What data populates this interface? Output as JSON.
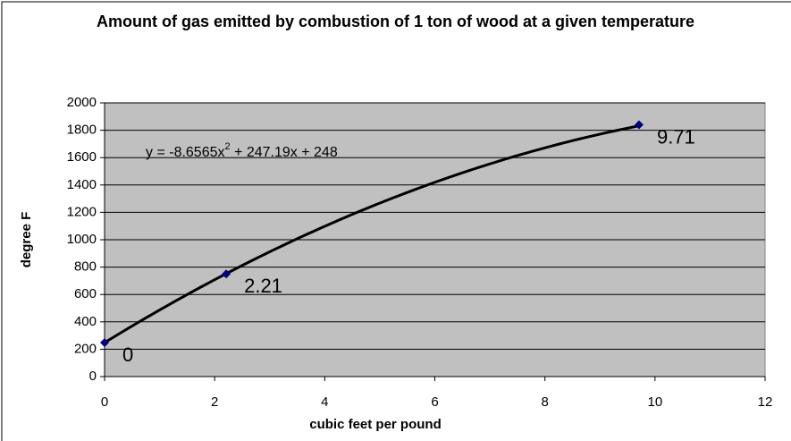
{
  "chart_data": {
    "type": "scatter",
    "title": "Amount of gas emitted by combustion of 1 ton of wood at a given temperature",
    "xlabel": "cubic feet per pound",
    "ylabel": "degree F",
    "series": [
      {
        "name": "degree F",
        "color": "#000080",
        "x": [
          0,
          2.21,
          9.71
        ],
        "values": [
          248,
          750,
          1840
        ]
      }
    ],
    "trendline": {
      "type": "polynomial",
      "color": "#000000",
      "coefficients": [
        -8.6565,
        247.19,
        248
      ],
      "label": [
        "y = -8.6565x",
        "2",
        " + 247.19x + 248"
      ]
    },
    "xlim": [
      0,
      12
    ],
    "xticks": [
      0,
      2,
      4,
      6,
      8,
      10,
      12
    ],
    "ylim": [
      0,
      2000
    ],
    "yticks": [
      0,
      200,
      400,
      600,
      800,
      1000,
      1200,
      1400,
      1600,
      1800,
      2000
    ],
    "grid": true,
    "plot_background": "#c0c0c0"
  }
}
